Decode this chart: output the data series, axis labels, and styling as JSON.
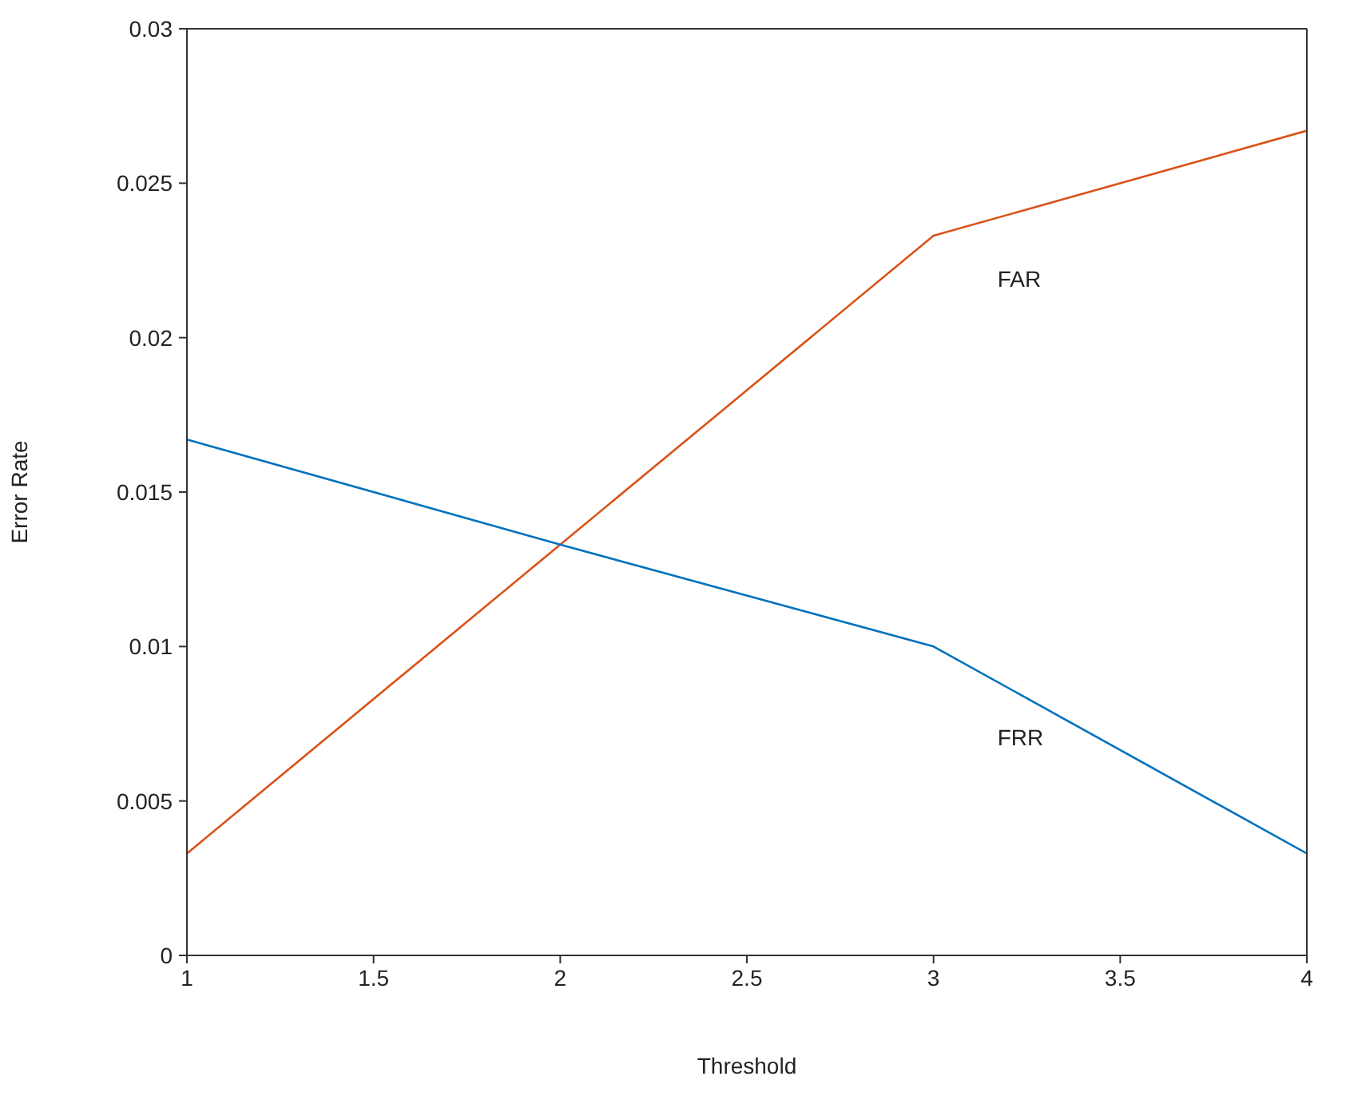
{
  "chart_data": {
    "type": "line",
    "xlabel": "Threshold",
    "ylabel": "Error Rate",
    "x": [
      1,
      2,
      3,
      4
    ],
    "series": [
      {
        "name": "FAR",
        "color": "#d95319",
        "values": [
          0.0033,
          0.0133,
          0.0233,
          0.0267
        ]
      },
      {
        "name": "FRR",
        "color": "#0072bd",
        "values": [
          0.0167,
          0.0133,
          0.01,
          0.0033
        ]
      }
    ],
    "xlim": [
      1,
      4
    ],
    "xticks": [
      1,
      1.5,
      2,
      2.5,
      3,
      3.5,
      4
    ],
    "ylim": [
      0,
      0.03
    ],
    "yticks": [
      0,
      0.005,
      0.01,
      0.015,
      0.02,
      0.025,
      0.03
    ],
    "grid": false,
    "legend": false,
    "marker": "none",
    "line_style": "solid"
  }
}
